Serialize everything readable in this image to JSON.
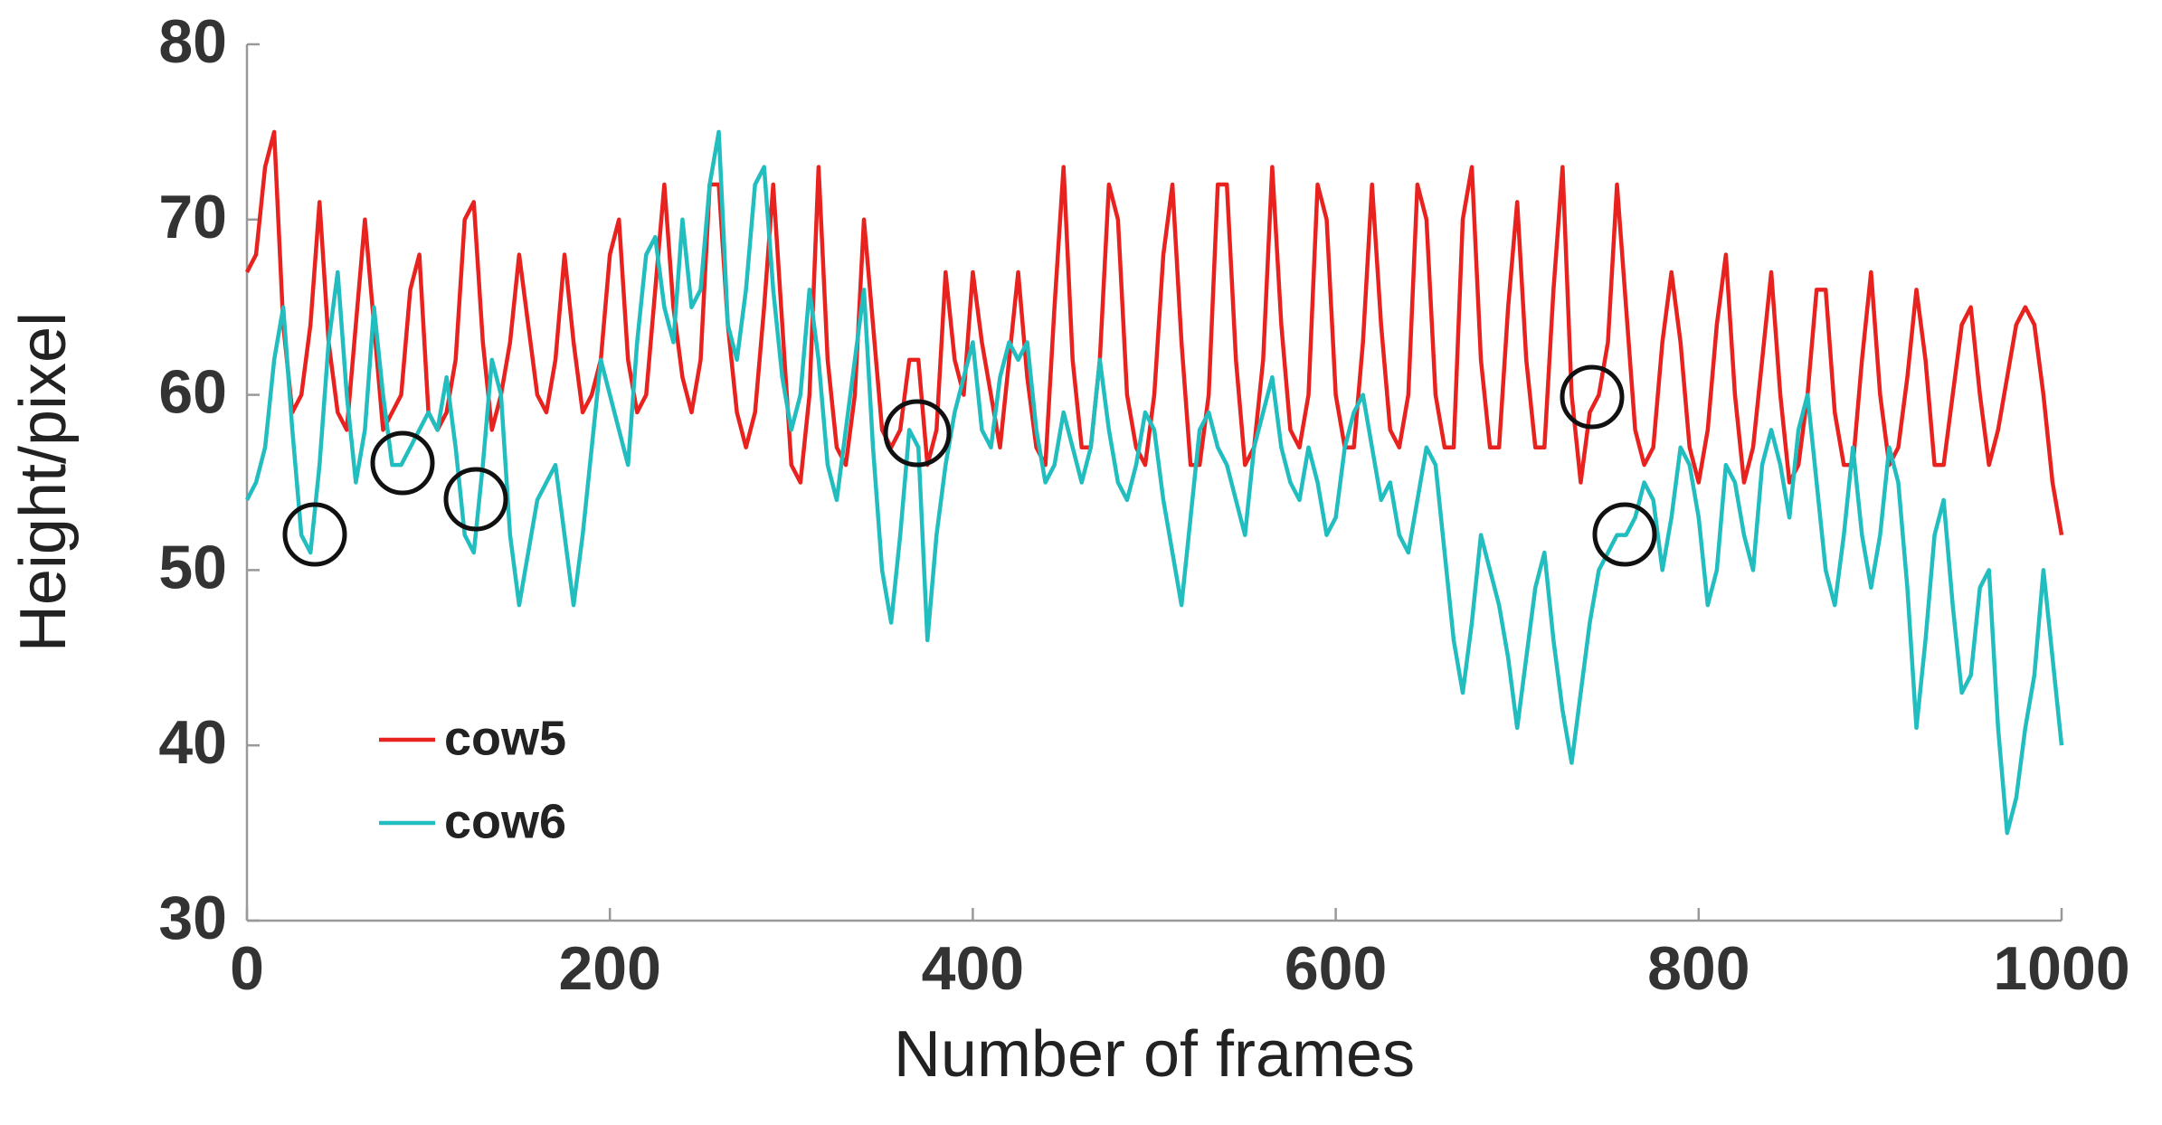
{
  "chart_data": {
    "type": "line",
    "x_label": "Number of frames",
    "y_label": "Height/pixel",
    "xlim": [
      0,
      1000
    ],
    "ylim": [
      30,
      80
    ],
    "xticks": [
      0,
      200,
      400,
      600,
      800,
      1000
    ],
    "yticks": [
      30,
      40,
      50,
      60,
      70,
      80
    ],
    "grid": false,
    "legend": "lower left",
    "x": [
      0,
      5,
      10,
      15,
      20,
      25,
      30,
      35,
      40,
      45,
      50,
      55,
      60,
      65,
      70,
      75,
      80,
      85,
      90,
      95,
      100,
      105,
      110,
      115,
      120,
      125,
      130,
      135,
      140,
      145,
      150,
      155,
      160,
      165,
      170,
      175,
      180,
      185,
      190,
      195,
      200,
      205,
      210,
      215,
      220,
      225,
      230,
      235,
      240,
      245,
      250,
      255,
      260,
      265,
      270,
      275,
      280,
      285,
      290,
      295,
      300,
      305,
      310,
      315,
      320,
      325,
      330,
      335,
      340,
      345,
      350,
      355,
      360,
      365,
      370,
      375,
      380,
      385,
      390,
      395,
      400,
      405,
      410,
      415,
      420,
      425,
      430,
      435,
      440,
      445,
      450,
      455,
      460,
      465,
      470,
      475,
      480,
      485,
      490,
      495,
      500,
      505,
      510,
      515,
      520,
      525,
      530,
      535,
      540,
      545,
      550,
      555,
      560,
      565,
      570,
      575,
      580,
      585,
      590,
      595,
      600,
      605,
      610,
      615,
      620,
      625,
      630,
      635,
      640,
      645,
      650,
      655,
      660,
      665,
      670,
      675,
      680,
      685,
      690,
      695,
      700,
      705,
      710,
      715,
      720,
      725,
      730,
      735,
      740,
      745,
      750,
      755,
      760,
      765,
      770,
      775,
      780,
      785,
      790,
      795,
      800,
      805,
      810,
      815,
      820,
      825,
      830,
      835,
      840,
      845,
      850,
      855,
      860,
      865,
      870,
      875,
      880,
      885,
      890,
      895,
      900,
      905,
      910,
      915,
      920,
      925,
      930,
      935,
      940,
      945,
      950,
      955,
      960,
      965,
      970,
      975,
      980,
      985,
      990,
      995,
      1000
    ],
    "series": [
      {
        "name": "cow5",
        "color": "#e8231f",
        "values": [
          67,
          68,
          73,
          75,
          64,
          59,
          60,
          64,
          71,
          63,
          59,
          58,
          64,
          70,
          64,
          58,
          59,
          60,
          66,
          68,
          59,
          58,
          59,
          62,
          70,
          71,
          63,
          58,
          60,
          63,
          68,
          64,
          60,
          59,
          62,
          68,
          63,
          59,
          60,
          62,
          68,
          70,
          62,
          59,
          60,
          66,
          72,
          65,
          61,
          59,
          62,
          72,
          72,
          64,
          59,
          57,
          59,
          65,
          72,
          64,
          56,
          55,
          60,
          73,
          62,
          57,
          56,
          60,
          70,
          64,
          58,
          57,
          58,
          62,
          62,
          56,
          58,
          67,
          62,
          60,
          67,
          63,
          60,
          57,
          62,
          67,
          61,
          57,
          56,
          65,
          73,
          62,
          57,
          57,
          62,
          72,
          70,
          60,
          57,
          56,
          60,
          68,
          72,
          63,
          56,
          56,
          60,
          72,
          72,
          62,
          56,
          57,
          62,
          73,
          64,
          58,
          57,
          60,
          72,
          70,
          60,
          57,
          57,
          63,
          72,
          64,
          58,
          57,
          60,
          72,
          70,
          60,
          57,
          57,
          70,
          73,
          62,
          57,
          57,
          65,
          71,
          62,
          57,
          57,
          66,
          73,
          60,
          55,
          59,
          60,
          63,
          72,
          65,
          58,
          56,
          57,
          63,
          67,
          63,
          57,
          55,
          58,
          64,
          68,
          60,
          55,
          57,
          62,
          67,
          60,
          55,
          56,
          60,
          66,
          66,
          59,
          56,
          56,
          62,
          67,
          60,
          56,
          57,
          61,
          66,
          62,
          56,
          56,
          60,
          64,
          65,
          60,
          56,
          58,
          61,
          64,
          65,
          64,
          60,
          55,
          52
        ]
      },
      {
        "name": "cow6",
        "color": "#22bdbf",
        "values": [
          54,
          55,
          57,
          62,
          65,
          58,
          52,
          51,
          56,
          63,
          67,
          60,
          55,
          58,
          65,
          60,
          56,
          56,
          57,
          58,
          59,
          58,
          61,
          57,
          52,
          51,
          56,
          62,
          60,
          52,
          48,
          51,
          54,
          55,
          56,
          52,
          48,
          52,
          57,
          62,
          60,
          58,
          56,
          63,
          68,
          69,
          65,
          63,
          70,
          65,
          66,
          72,
          75,
          64,
          62,
          66,
          72,
          73,
          66,
          61,
          58,
          60,
          66,
          62,
          56,
          54,
          58,
          62,
          66,
          57,
          50,
          47,
          52,
          58,
          57,
          46,
          52,
          56,
          59,
          61,
          63,
          58,
          57,
          61,
          63,
          62,
          63,
          58,
          55,
          56,
          59,
          57,
          55,
          57,
          62,
          58,
          55,
          54,
          56,
          59,
          58,
          54,
          51,
          48,
          53,
          58,
          59,
          57,
          56,
          54,
          52,
          57,
          59,
          61,
          57,
          55,
          54,
          57,
          55,
          52,
          53,
          57,
          59,
          60,
          57,
          54,
          55,
          52,
          51,
          54,
          57,
          56,
          51,
          46,
          43,
          47,
          52,
          50,
          48,
          45,
          41,
          45,
          49,
          51,
          46,
          42,
          39,
          43,
          47,
          50,
          51,
          52,
          52,
          53,
          55,
          54,
          50,
          53,
          57,
          56,
          53,
          48,
          50,
          56,
          55,
          52,
          50,
          56,
          58,
          56,
          53,
          58,
          60,
          55,
          50,
          48,
          52,
          57,
          52,
          49,
          52,
          57,
          55,
          49,
          41,
          46,
          52,
          54,
          48,
          43,
          44,
          49,
          50,
          41,
          35,
          37,
          41,
          44,
          50,
          45,
          40
        ]
      }
    ]
  }
}
